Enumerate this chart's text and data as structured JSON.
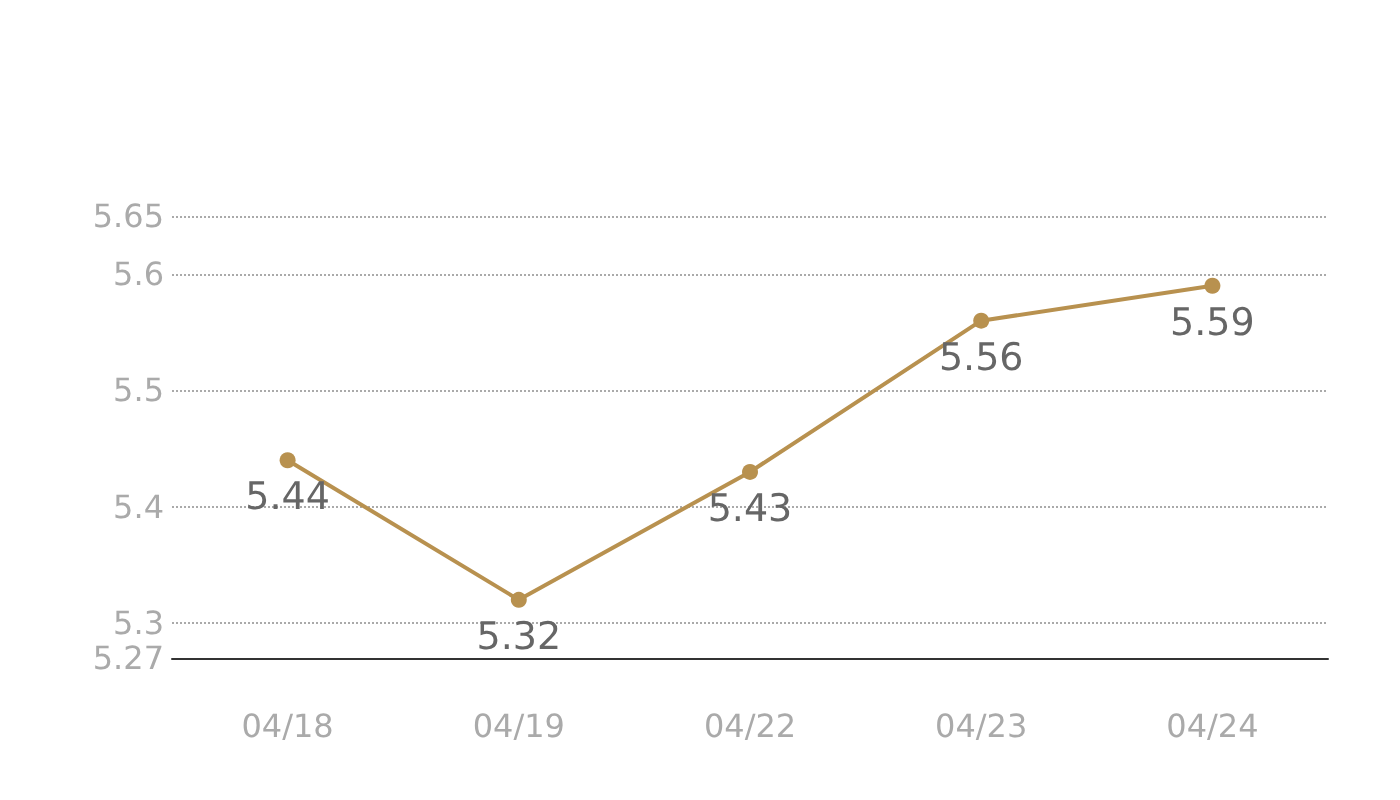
{
  "chart_data": {
    "type": "line",
    "categories": [
      "04/18",
      "04/19",
      "04/22",
      "04/23",
      "04/24"
    ],
    "values": [
      5.44,
      5.32,
      5.43,
      5.56,
      5.59
    ],
    "color": "#b8914f",
    "ylim": [
      5.27,
      5.65
    ],
    "yticks": [
      5.27,
      5.3,
      5.4,
      5.5,
      5.6,
      5.65
    ],
    "grid": "y",
    "data_labels": true,
    "marker": "circle",
    "line_style": "solid"
  }
}
